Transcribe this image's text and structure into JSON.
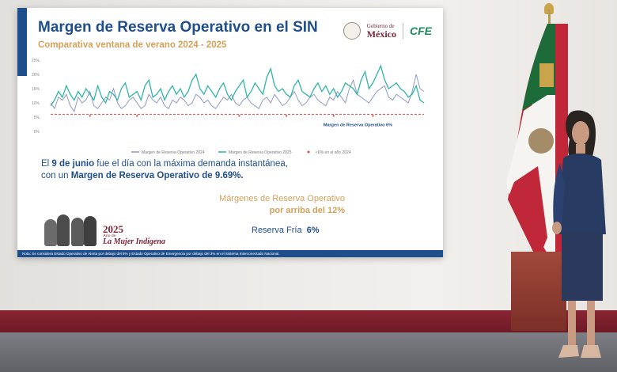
{
  "slide": {
    "title": "Margen de Reserva Operativo en el SIN",
    "subtitle": "Comparativa ventana de verano 2024 - 2025",
    "logos": {
      "gobierno_top": "Gobierno de",
      "gobierno_bottom": "México",
      "cfe": "CFE"
    },
    "chart_data": {
      "type": "line",
      "yticks": [
        "25%",
        "20%",
        "15%",
        "10%",
        "5%",
        "0%"
      ],
      "ylim": [
        0,
        25
      ],
      "series": [
        {
          "name": "Margen de Reserva Operativo 2024",
          "color": "#8e99c9",
          "values": [
            10,
            8,
            12,
            11,
            13,
            9,
            7,
            12,
            10,
            11,
            14,
            9,
            8,
            10,
            12,
            11,
            15,
            10,
            8,
            9,
            11,
            12,
            10,
            8,
            9,
            13,
            11,
            10,
            12,
            9,
            8,
            11,
            10,
            12,
            11,
            9,
            10,
            13,
            12,
            10,
            11,
            9,
            8,
            10,
            12,
            11,
            13,
            10,
            9,
            11,
            12,
            10,
            9,
            8,
            11,
            12,
            10,
            13,
            11,
            9,
            10,
            12,
            14,
            11,
            9,
            10,
            12,
            13,
            11,
            10,
            9,
            12,
            11,
            14,
            12,
            10,
            15,
            18,
            13,
            12,
            11,
            10,
            12,
            14,
            15,
            16,
            12,
            11,
            13,
            12,
            11,
            10,
            14,
            20,
            15,
            14
          ]
        },
        {
          "name": "Margen de Reserva Operativo 2025",
          "color": "#2fb6a6",
          "values": [
            9,
            11,
            14,
            12,
            16,
            13,
            11,
            14,
            12,
            15,
            13,
            11,
            16,
            12,
            10,
            14,
            13,
            11,
            15,
            17,
            12,
            13,
            14,
            11,
            16,
            18,
            12,
            13,
            15,
            11,
            14,
            16,
            13,
            15,
            12,
            14,
            18,
            20,
            15,
            13,
            16,
            14,
            12,
            15,
            17,
            13,
            11,
            14,
            16,
            18,
            12,
            14,
            17,
            15,
            13,
            19,
            22,
            16,
            14,
            15,
            13,
            12,
            16,
            18,
            14,
            13,
            12,
            15,
            17,
            14,
            16,
            13,
            15,
            12,
            14,
            17,
            16,
            15,
            13,
            18,
            21,
            15,
            17,
            20,
            23,
            18,
            15,
            16,
            17,
            15,
            14,
            12,
            13,
            16,
            11,
            10
          ]
        },
        {
          "name": "<6% en el año 2024",
          "color": "#d94a4a",
          "values": [
            6,
            6,
            6,
            6,
            6,
            6,
            6,
            6,
            6,
            6,
            6,
            6,
            6,
            6,
            6,
            6,
            6,
            6,
            6,
            6,
            6,
            6,
            6,
            6,
            6,
            6,
            6,
            6,
            6,
            6,
            6,
            6,
            6,
            6,
            6,
            6,
            6,
            6,
            6,
            6,
            6,
            6,
            6,
            6,
            6,
            6,
            6,
            6,
            6,
            6,
            6,
            6,
            6,
            6,
            6,
            6,
            6,
            6,
            6,
            6,
            6,
            6,
            6,
            6,
            6,
            6,
            6,
            6,
            6,
            6,
            6,
            6,
            6,
            6,
            6,
            6,
            6,
            6,
            6,
            6,
            6,
            6,
            6,
            6,
            6,
            6,
            6,
            6,
            6,
            6,
            6,
            6,
            6,
            6,
            6,
            6
          ]
        }
      ],
      "threshold_label": "Margen de Reserva Operativo 6%",
      "threshold_value": 6
    },
    "text1": {
      "prefix": "El ",
      "date": "9 de junio",
      "middle": " fue el día con la máxima demanda instantánea,",
      "line2a": "con un ",
      "line2b": "Margen de Reserva Operativo de 9.69%."
    },
    "margins": {
      "line1": "Márgenes de Reserva Operativo",
      "line2": "por arriba del 12%"
    },
    "reserva": {
      "label": "Reserva Fría",
      "value": "6%"
    },
    "mujer": {
      "year": "2025",
      "small": "Año de",
      "big": "La Mujer Indígena"
    },
    "footnote": "Nota: Se considera Estado Operativo de Alerta por debajo del 6% y Estado Operativo de Emergencia por debajo del 3% en el Sistema Interconectado Nacional."
  },
  "colors": {
    "primary_blue": "#1f4e8c",
    "gold": "#d4a15a",
    "guinda": "#7b2335",
    "flag_green": "#1e6b3a",
    "flag_red": "#c0283a"
  }
}
